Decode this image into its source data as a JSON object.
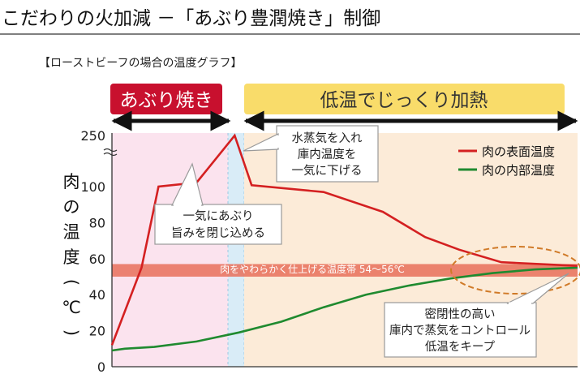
{
  "header": {
    "title": "こだわりの火加減 －「あぶり豊潤焼き」制御",
    "subtitle": "【ローストビーフの場合の温度グラフ】"
  },
  "phases": [
    {
      "label": "あぶり焼き",
      "x_start": 0,
      "x_end": 1.55,
      "color": "#c8102e"
    },
    {
      "label": "低温でじっくり加熱",
      "x_start": 1.55,
      "x_end": 5.5,
      "color": "#f9dc6a"
    }
  ],
  "colors": {
    "surface": "#d42021",
    "internal": "#1f8a2f",
    "band": "#e8705a",
    "zone_sear": "#fbe3ee",
    "zone_steam": "#d9ecf7",
    "zone_low": "#fcebd8",
    "oval": "#d07a28"
  },
  "chart_data": {
    "type": "line",
    "ylabel": "肉の温度(℃)",
    "yticks": [
      0,
      20,
      40,
      60,
      80,
      100,
      250
    ],
    "ybreak": "between 100 and 250",
    "xlim": [
      0,
      5.5
    ],
    "series": [
      {
        "name": "肉の表面温度",
        "x": [
          0,
          0.35,
          0.55,
          1.0,
          1.45,
          1.65,
          2.5,
          3.2,
          3.7,
          4.1,
          4.6,
          5.5
        ],
        "y": [
          12,
          55,
          100,
          112,
          250,
          104,
          97,
          86,
          72,
          65,
          58,
          56
        ]
      },
      {
        "name": "肉の内部温度",
        "x": [
          0,
          0.15,
          0.5,
          1.0,
          1.5,
          2.0,
          2.5,
          3.0,
          3.5,
          4.0,
          4.5,
          5.0,
          5.5
        ],
        "y": [
          9,
          10,
          11,
          14,
          19,
          25,
          33,
          40,
          45,
          49,
          52,
          54,
          55
        ]
      }
    ],
    "band": {
      "label": "肉をやわらかく仕上げる温度帯 54～56℃",
      "y_from": 50,
      "y_to": 57
    },
    "annotations": [
      {
        "id": "steam",
        "lines": [
          "水蒸気を入れ",
          "庫内温度を",
          "一気に下げる"
        ]
      },
      {
        "id": "sear",
        "lines": [
          "一気にあぶり",
          "旨みを閉じ込める"
        ]
      },
      {
        "id": "sealed",
        "lines": [
          "密閉性の高い",
          "庫内で蒸気をコントロール",
          "低温をキープ"
        ]
      }
    ]
  }
}
